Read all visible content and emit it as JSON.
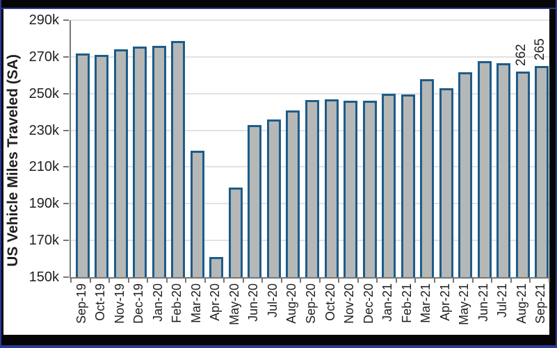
{
  "chart_data": {
    "type": "bar",
    "title": "",
    "xlabel": "",
    "ylabel": "US Vehicle Miles Traveled (SA)",
    "categories": [
      "Sep-19",
      "Oct-19",
      "Nov-19",
      "Dec-19",
      "Jan-20",
      "Feb-20",
      "Mar-20",
      "Apr-20",
      "May-20",
      "Jun-20",
      "Jul-20",
      "Aug-20",
      "Sep-20",
      "Oct-20",
      "Nov-20",
      "Dec-20",
      "Jan-21",
      "Feb-21",
      "Mar-21",
      "Apr-21",
      "May-21",
      "Jun-21",
      "Jul-21",
      "Aug-21",
      "Sep-21"
    ],
    "values": [
      272,
      271,
      274,
      275.5,
      276,
      278.5,
      219,
      161,
      199,
      233,
      236,
      241,
      246.5,
      247,
      246,
      246,
      250,
      249.5,
      258,
      253,
      261.5,
      267.5,
      266.5,
      262,
      265
    ],
    "values_unit": "thousands of miles (k)",
    "ylim": [
      150,
      290
    ],
    "ytick_step": 20,
    "ytick_labels": [
      "150k",
      "170k",
      "190k",
      "210k",
      "230k",
      "250k",
      "270k",
      "290k"
    ],
    "grid": "horizontal",
    "legend_position": "none",
    "annotations": [
      {
        "category": "Aug-21",
        "text": "262"
      },
      {
        "category": "Sep-21",
        "text": "265"
      }
    ],
    "colors": {
      "bar_fill": "#b5b8b7",
      "bar_border": "#1e5c8a",
      "gridline": "#e2e2e2",
      "axis": "#767676",
      "text": "#1f1f1f",
      "frame_black": "#050505",
      "frame_navy": "#2b3895",
      "plot_bg": "#ffffff"
    }
  }
}
